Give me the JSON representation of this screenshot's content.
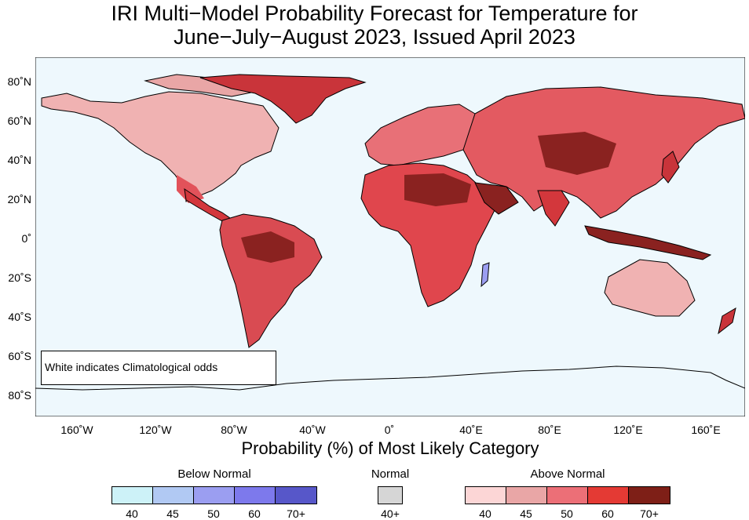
{
  "title": {
    "line1": "IRI Multi−Model Probability Forecast for Temperature for",
    "line2": "June−July−August 2023, Issued April 2023"
  },
  "map": {
    "ocean_color": "#eef8fd",
    "latitude_labels": [
      "80˚N",
      "60˚N",
      "40˚N",
      "20˚N",
      "0˚",
      "20˚S",
      "40˚S",
      "60˚S",
      "80˚S"
    ],
    "longitude_labels": [
      "160˚W",
      "120˚W",
      "80˚W",
      "40˚W",
      "0˚",
      "40˚E",
      "80˚E",
      "120˚E",
      "160˚E"
    ],
    "note": "White indicates Climatological odds"
  },
  "xaxis_title": "Probability (%) of Most Likely Category",
  "legend": {
    "below": {
      "title": "Below Normal",
      "labels": [
        "40",
        "45",
        "50",
        "60",
        "70+"
      ],
      "colors": [
        "#cdf2f8",
        "#b1c9f3",
        "#9b9ef1",
        "#7d79ec",
        "#5757c9"
      ]
    },
    "normal": {
      "title": "Normal",
      "labels": [
        "40+"
      ],
      "colors": [
        "#d6d6d6"
      ]
    },
    "above": {
      "title": "Above Normal",
      "labels": [
        "40",
        "45",
        "50",
        "60",
        "70+"
      ],
      "colors": [
        "#fcd6d6",
        "#e9a6a6",
        "#ec6f77",
        "#e43a34",
        "#7e1f17"
      ]
    }
  }
}
